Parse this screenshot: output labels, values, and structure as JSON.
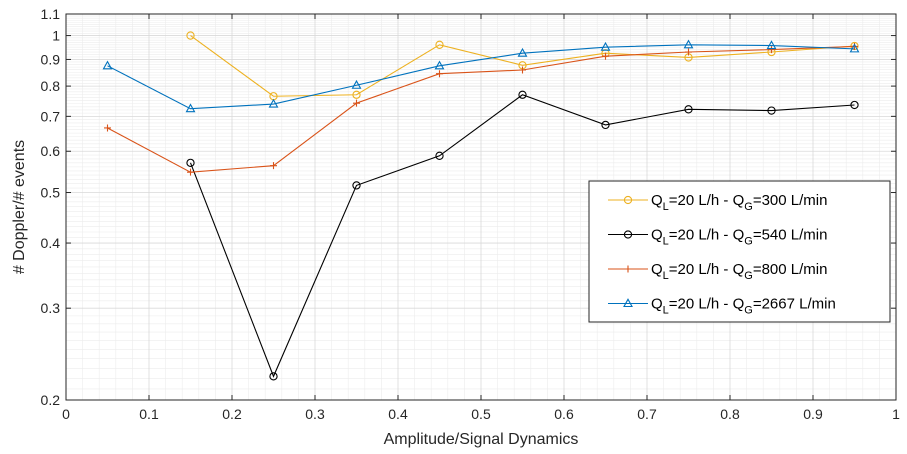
{
  "chart_data": {
    "type": "line",
    "title": "",
    "xlabel": "Amplitude/Signal Dynamics",
    "ylabel": "# Doppler/# events",
    "xlim": [
      0,
      1
    ],
    "ylim": [
      0.2,
      1.1
    ],
    "yscale": "log",
    "grid": true,
    "legend_position": "bottom-right",
    "xticks": [
      0,
      0.1,
      0.2,
      0.3,
      0.4,
      0.5,
      0.6,
      0.7,
      0.8,
      0.9,
      1
    ],
    "xtick_labels": [
      "0",
      "0.1",
      "0.2",
      "0.3",
      "0.4",
      "0.5",
      "0.6",
      "0.7",
      "0.8",
      "0.9",
      "1"
    ],
    "yticks": [
      0.2,
      0.3,
      0.4,
      0.5,
      0.6,
      0.7,
      0.8,
      0.9,
      1,
      1.1
    ],
    "ytick_labels": [
      "0.2",
      "0.3",
      "0.4",
      "0.5",
      "0.6",
      "0.7",
      "0.8",
      "0.9",
      "1",
      "1.1"
    ],
    "series": [
      {
        "name": "Q_L=20 L/h - Q_G=300 L/min",
        "legend": {
          "q1": "Q",
          "s1": "L",
          "mid": "=20 L/h - Q",
          "s2": "G",
          "tail": "=300 L/min"
        },
        "color": "#EDB120",
        "marker": "circle",
        "x": [
          0.15,
          0.25,
          0.35,
          0.45,
          0.55,
          0.65,
          0.75,
          0.85,
          0.95
        ],
        "y": [
          1.0,
          0.765,
          0.77,
          0.96,
          0.877,
          0.925,
          0.908,
          0.93,
          0.955
        ]
      },
      {
        "name": "Q_L=20 L/h - Q_G=540 L/min",
        "legend": {
          "q1": "Q",
          "s1": "L",
          "mid": "=20 L/h - Q",
          "s2": "G",
          "tail": "=540 L/min"
        },
        "color": "#000000",
        "marker": "circle",
        "x": [
          0.15,
          0.25,
          0.35,
          0.45,
          0.55,
          0.65,
          0.75,
          0.85,
          0.95
        ],
        "y": [
          0.57,
          0.222,
          0.516,
          0.588,
          0.77,
          0.674,
          0.722,
          0.718,
          0.736
        ]
      },
      {
        "name": "Q_L=20 L/h - Q_G=800 L/min",
        "legend": {
          "q1": "Q",
          "s1": "L",
          "mid": "=20 L/h - Q",
          "s2": "G",
          "tail": "=800 L/min"
        },
        "color": "#D95319",
        "marker": "plus",
        "x": [
          0.05,
          0.15,
          0.25,
          0.35,
          0.45,
          0.55,
          0.65,
          0.75,
          0.85,
          0.95
        ],
        "y": [
          0.665,
          0.547,
          0.563,
          0.742,
          0.845,
          0.859,
          0.913,
          0.93,
          0.94,
          0.953
        ]
      },
      {
        "name": "Q_L=20 L/h - Q_G=2667 L/min",
        "legend": {
          "q1": "Q",
          "s1": "L",
          "mid": "=20 L/h - Q",
          "s2": "G",
          "tail": "=2667 L/min"
        },
        "color": "#0072BD",
        "marker": "triangle",
        "x": [
          0.05,
          0.15,
          0.25,
          0.35,
          0.45,
          0.55,
          0.65,
          0.75,
          0.85,
          0.95
        ],
        "y": [
          0.875,
          0.724,
          0.739,
          0.803,
          0.875,
          0.925,
          0.95,
          0.96,
          0.957,
          0.943
        ]
      }
    ]
  }
}
